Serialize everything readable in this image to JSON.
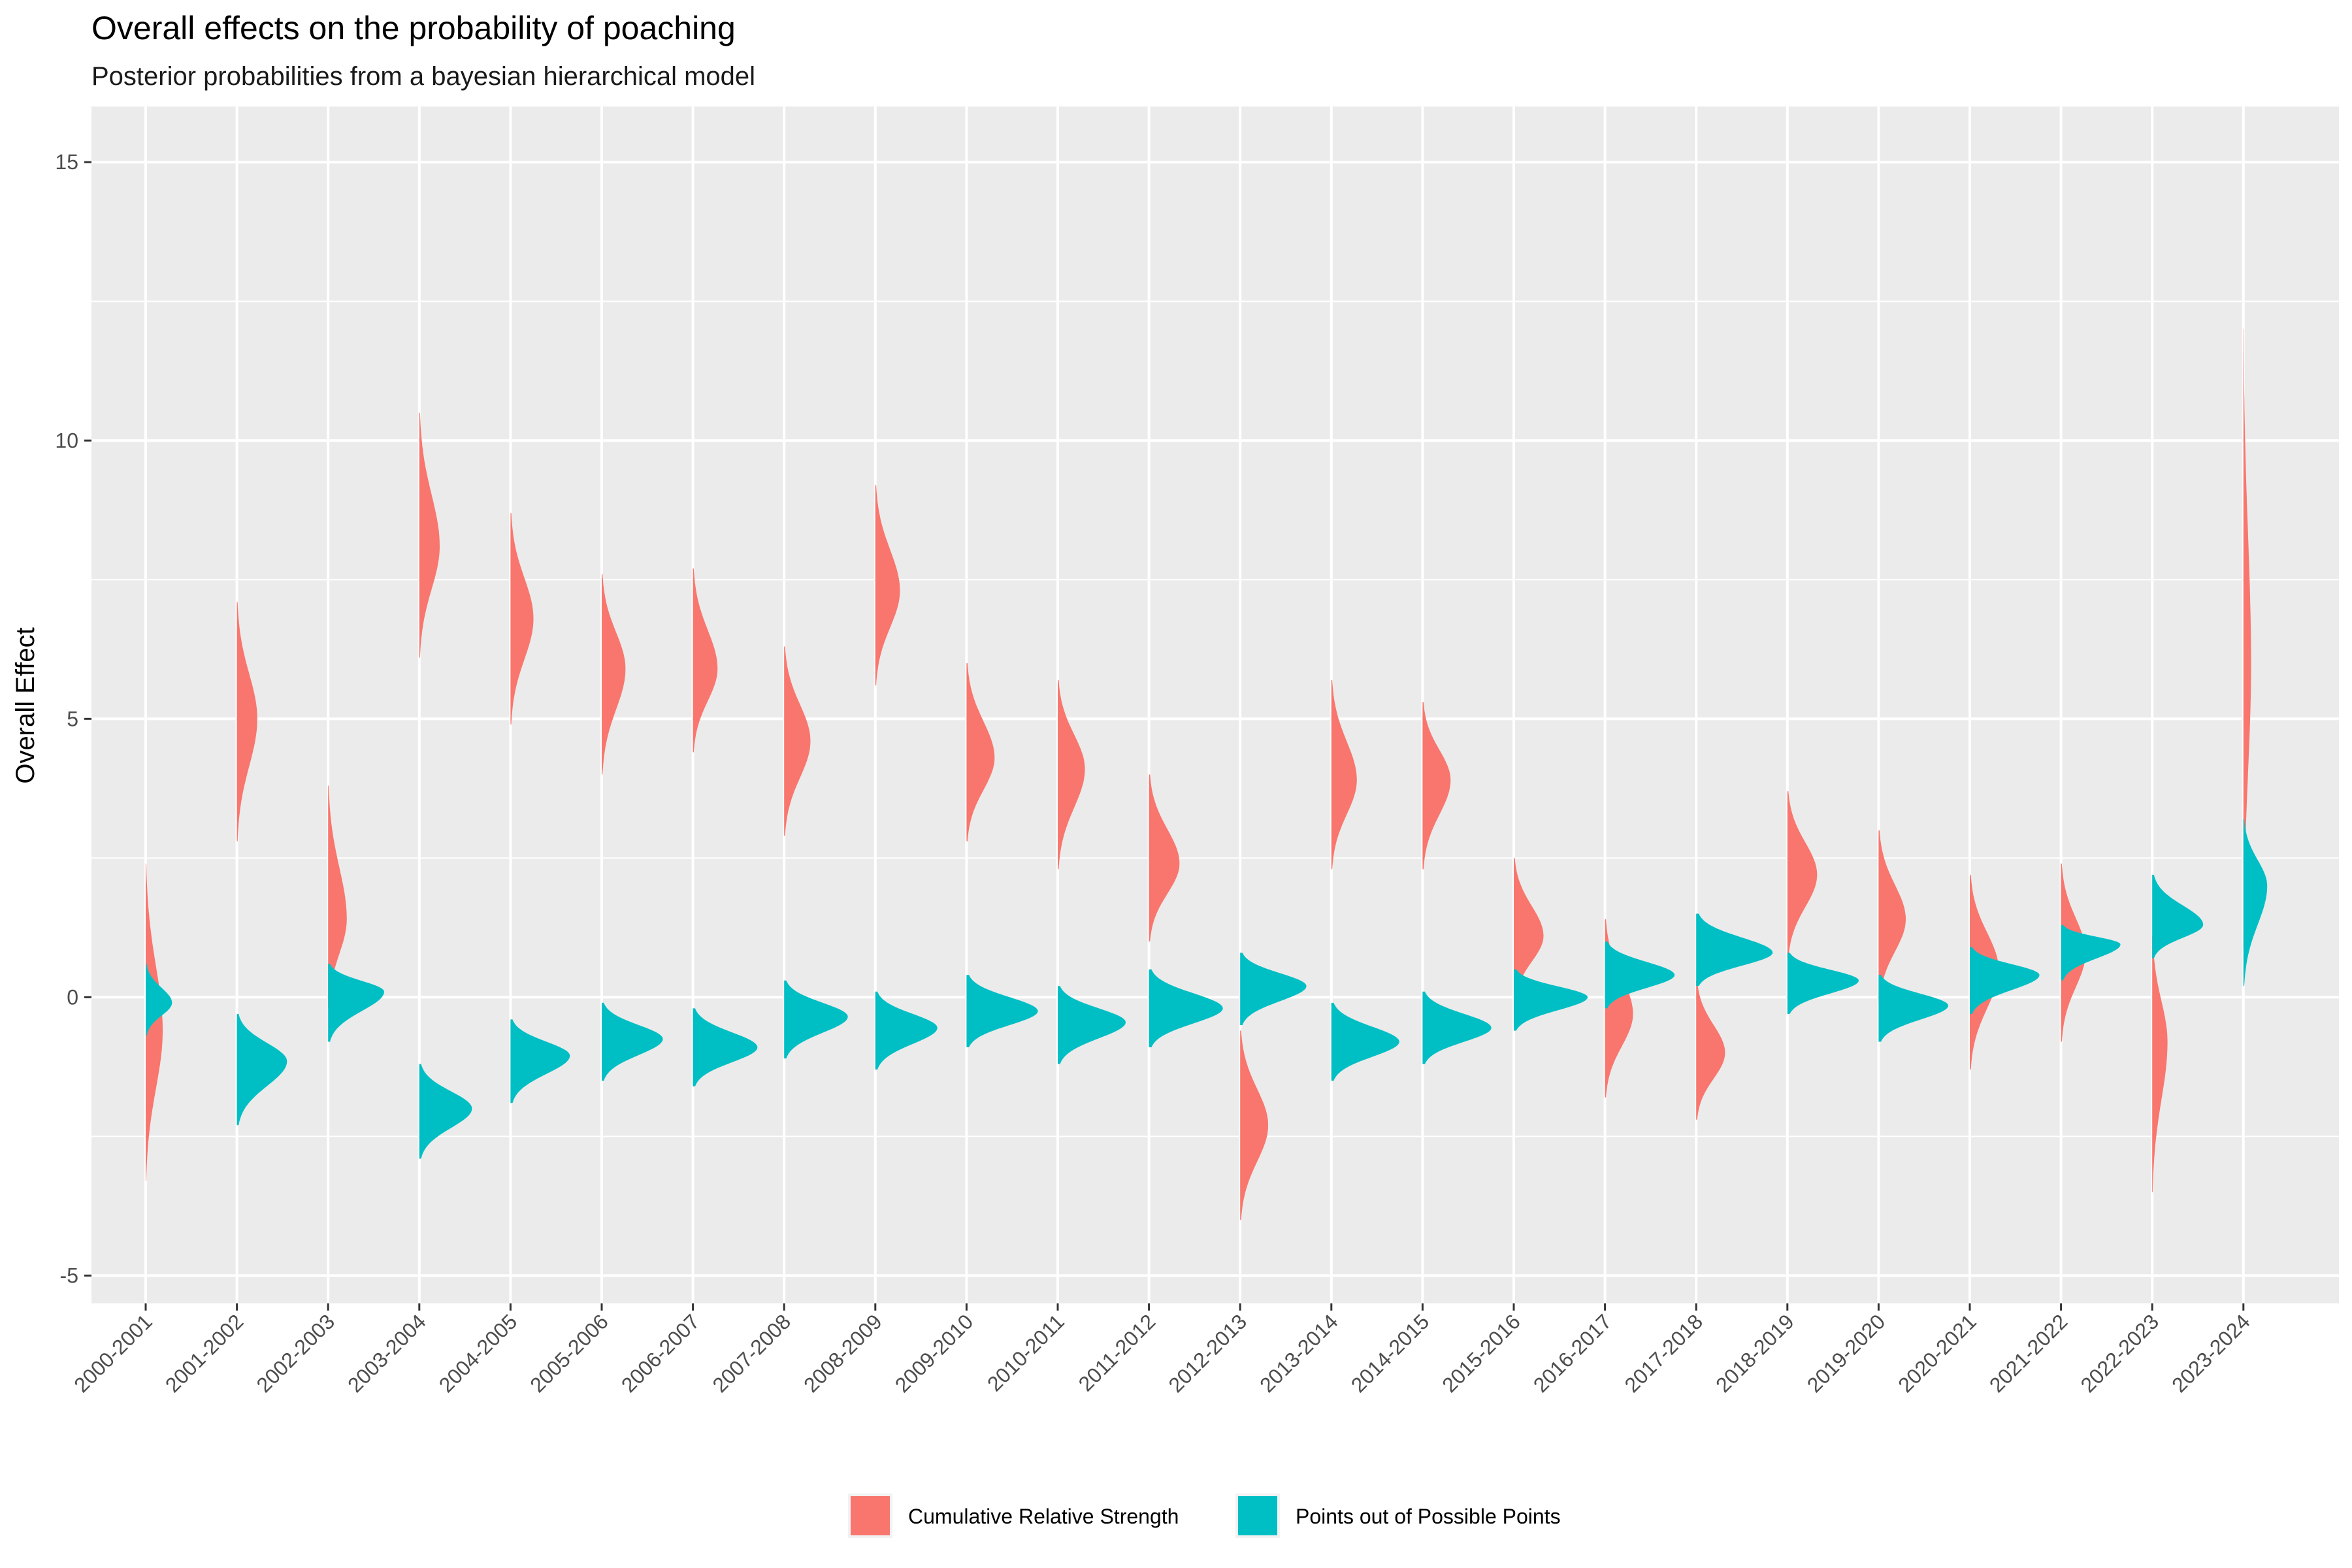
{
  "chart_data": {
    "type": "violin",
    "title": "Overall effects on the probability of poaching",
    "subtitle": "Posterior probabilities from a bayesian hierarchical model",
    "xlabel": "",
    "ylabel": "Overall Effect",
    "ylim": [
      -5.5,
      16
    ],
    "yticks": [
      -5,
      0,
      5,
      10,
      15
    ],
    "grid": true,
    "legend_position": "bottom",
    "categories": [
      "2000-2001",
      "2001-2002",
      "2002-2003",
      "2003-2004",
      "2004-2005",
      "2005-2006",
      "2006-2007",
      "2007-2008",
      "2008-2009",
      "2009-2010",
      "2010-2011",
      "2011-2012",
      "2012-2013",
      "2013-2014",
      "2014-2015",
      "2015-2016",
      "2016-2017",
      "2017-2018",
      "2018-2019",
      "2019-2020",
      "2020-2021",
      "2021-2022",
      "2022-2023",
      "2023-2024"
    ],
    "series": [
      {
        "name": "Cumulative Relative Strength",
        "color": "#F8766D",
        "center": [
          -0.6,
          5.0,
          1.4,
          8.1,
          6.8,
          5.9,
          5.9,
          4.6,
          7.3,
          4.3,
          4.1,
          2.4,
          -2.3,
          3.9,
          3.9,
          1.1,
          -0.3,
          -1.0,
          2.2,
          1.4,
          0.5,
          0.8,
          -0.8,
          6.0
        ],
        "min": [
          -3.3,
          2.8,
          -0.2,
          6.1,
          4.9,
          4.0,
          4.4,
          2.9,
          5.6,
          2.8,
          2.3,
          1.0,
          -4.0,
          2.3,
          2.3,
          -0.1,
          -1.8,
          -2.2,
          0.7,
          -0.1,
          -1.3,
          -0.8,
          -3.5,
          0.9
        ],
        "max": [
          2.4,
          7.1,
          3.8,
          10.5,
          8.7,
          7.6,
          7.7,
          6.3,
          9.2,
          6.0,
          5.7,
          4.0,
          -0.6,
          5.7,
          5.3,
          2.5,
          1.4,
          0.3,
          3.7,
          3.0,
          2.2,
          2.4,
          1.1,
          12.0
        ],
        "halfwidth": [
          0.2,
          0.24,
          0.22,
          0.24,
          0.27,
          0.28,
          0.29,
          0.31,
          0.29,
          0.33,
          0.32,
          0.36,
          0.33,
          0.3,
          0.33,
          0.35,
          0.33,
          0.34,
          0.35,
          0.32,
          0.34,
          0.29,
          0.18,
          0.09
        ]
      },
      {
        "name": "Points out of Possible Points",
        "color": "#00BFC4",
        "center": [
          -0.1,
          -1.15,
          0.1,
          -2.0,
          -1.05,
          -0.75,
          -0.9,
          -0.35,
          -0.55,
          -0.25,
          -0.45,
          -0.2,
          0.2,
          -0.8,
          -0.55,
          0.0,
          0.4,
          0.8,
          0.3,
          -0.15,
          0.4,
          0.95,
          1.3,
          2.0
        ],
        "min": [
          -0.7,
          -2.3,
          -0.8,
          -2.9,
          -1.9,
          -1.5,
          -1.6,
          -1.1,
          -1.3,
          -0.9,
          -1.2,
          -0.9,
          -0.5,
          -1.5,
          -1.2,
          -0.6,
          -0.2,
          0.2,
          -0.3,
          -0.8,
          -0.3,
          0.3,
          0.7,
          0.2
        ],
        "max": [
          0.6,
          -0.3,
          0.6,
          -1.2,
          -0.4,
          -0.1,
          -0.2,
          0.3,
          0.1,
          0.4,
          0.2,
          0.5,
          0.8,
          -0.1,
          0.1,
          0.5,
          1.0,
          1.5,
          0.8,
          0.4,
          0.9,
          1.3,
          2.2,
          3.2
        ],
        "halfwidth": [
          0.31,
          0.59,
          0.66,
          0.62,
          0.7,
          0.72,
          0.76,
          0.75,
          0.73,
          0.84,
          0.8,
          0.87,
          0.78,
          0.8,
          0.81,
          0.87,
          0.82,
          0.9,
          0.84,
          0.82,
          0.82,
          0.7,
          0.6,
          0.28
        ]
      }
    ]
  }
}
